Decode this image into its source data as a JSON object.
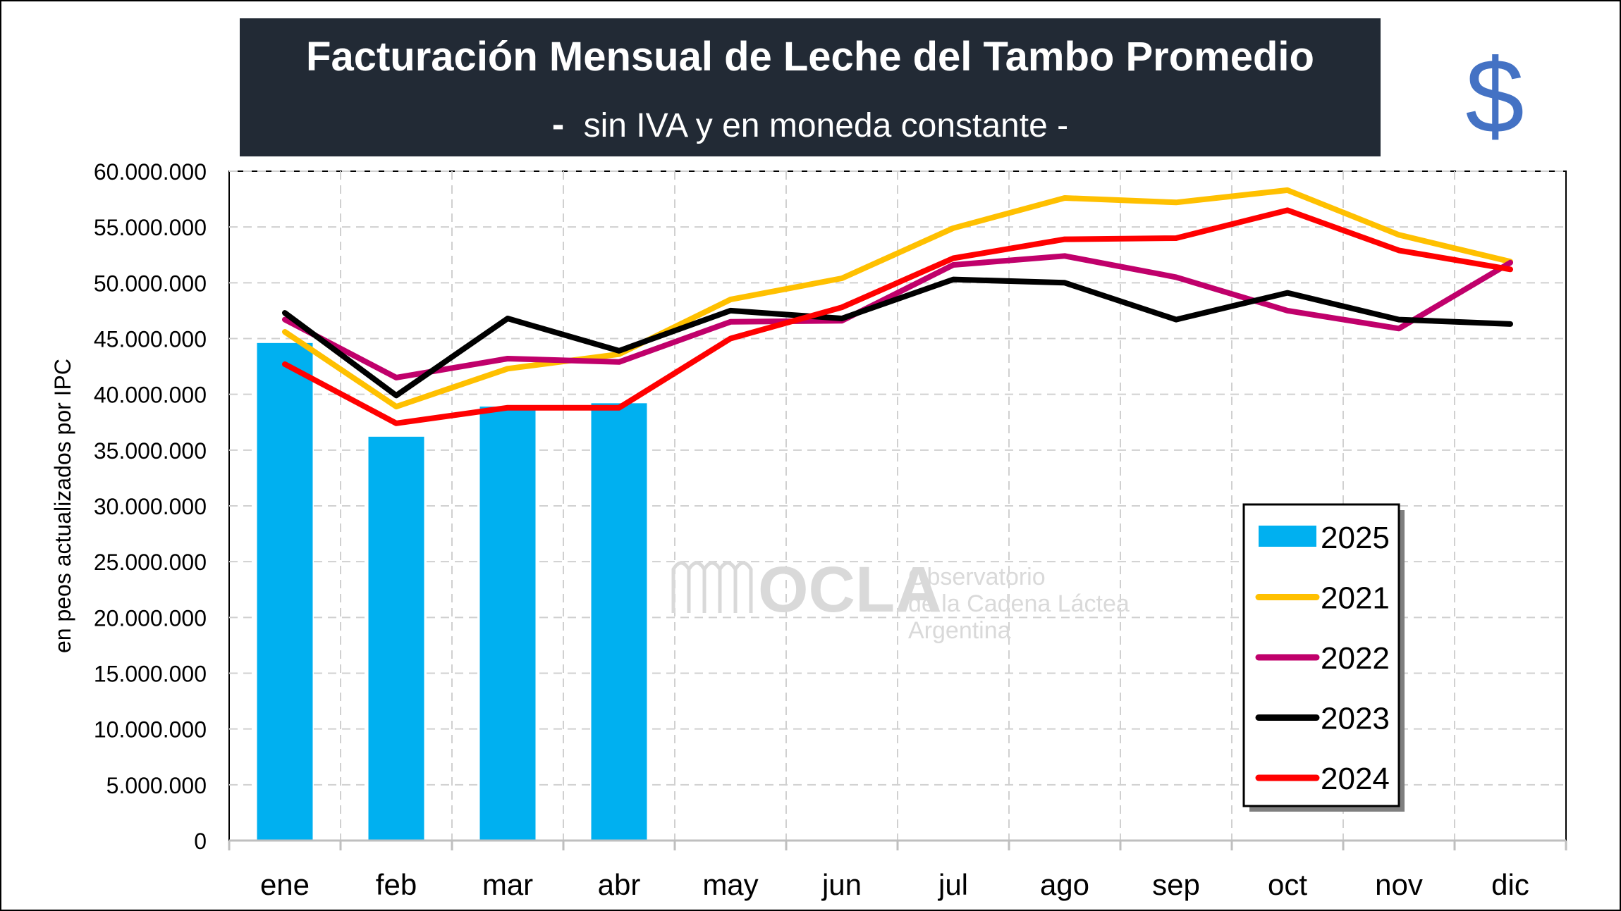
{
  "header": {
    "title": "Facturación Mensual de Leche del Tambo Promedio",
    "subtitle_dash": "-",
    "subtitle": "sin IVA y en moneda constante -",
    "currency_symbol": "$"
  },
  "watermark": {
    "logo_text": "OCLA",
    "line1": "Observatorio",
    "line2": "de la Cadena Láctea",
    "line3": "Argentina"
  },
  "colors": {
    "title_bg": "#222A35",
    "title_text": "#FFFFFF",
    "currency": "#4472C4",
    "bars_2025": "#00B0F0",
    "line_2021": "#FFC000",
    "line_2022": "#C0006B",
    "line_2023": "#000000",
    "line_2024": "#FF0000",
    "grid": "#D0D0D0",
    "watermark": "#D9D9D9"
  },
  "chart_data": {
    "type": "bar+line",
    "ylabel": "en peos actualizados por IPC",
    "ylim": [
      0,
      60000000
    ],
    "yticks": [
      0,
      5000000,
      10000000,
      15000000,
      20000000,
      25000000,
      30000000,
      35000000,
      40000000,
      45000000,
      50000000,
      55000000,
      60000000
    ],
    "ytick_labels": [
      "0",
      "5.000.000",
      "10.000.000",
      "15.000.000",
      "20.000.000",
      "25.000.000",
      "30.000.000",
      "35.000.000",
      "40.000.000",
      "45.000.000",
      "50.000.000",
      "55.000.000",
      "60.000.000"
    ],
    "categories": [
      "ene",
      "feb",
      "mar",
      "abr",
      "may",
      "jun",
      "jul",
      "ago",
      "sep",
      "oct",
      "nov",
      "dic"
    ],
    "grid": true,
    "legend_position": "bottom-right",
    "bar_series": {
      "name": "2025",
      "values": [
        44600000,
        36200000,
        38900000,
        39200000
      ]
    },
    "series": [
      {
        "name": "2021",
        "values": [
          45600000,
          38900000,
          42300000,
          43600000,
          48500000,
          50400000,
          54900000,
          57600000,
          57200000,
          58300000,
          54300000,
          51900000
        ]
      },
      {
        "name": "2022",
        "values": [
          46700000,
          41500000,
          43200000,
          42900000,
          46500000,
          46600000,
          51600000,
          52400000,
          50500000,
          47500000,
          45900000,
          51800000
        ]
      },
      {
        "name": "2023",
        "values": [
          47300000,
          39900000,
          46800000,
          43900000,
          47500000,
          46800000,
          50300000,
          50000000,
          46700000,
          49100000,
          46700000,
          46300000
        ]
      },
      {
        "name": "2024",
        "values": [
          42700000,
          37400000,
          38800000,
          38800000,
          45000000,
          47800000,
          52200000,
          53900000,
          54000000,
          56500000,
          52900000,
          51200000
        ]
      }
    ]
  }
}
